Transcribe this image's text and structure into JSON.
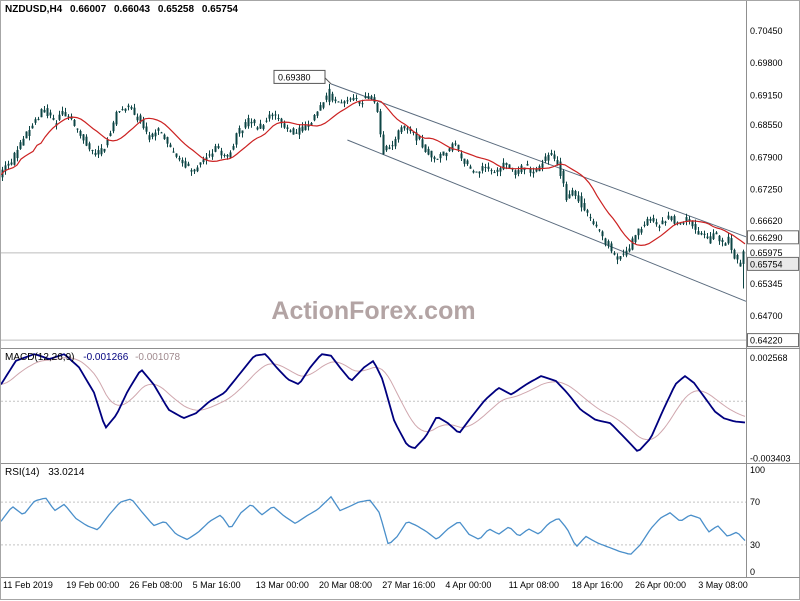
{
  "header": {
    "symbol_period": "NZDUSD,H4",
    "open": "0.66007",
    "high": "0.66043",
    "low": "0.65258",
    "close": "0.65754"
  },
  "watermark": "ActionForex.com",
  "indicators": {
    "macd": {
      "title": "MACD(12,26,9)",
      "value1": "-0.001266",
      "value2": "-0.001078"
    },
    "rsi": {
      "title": "RSI(14)",
      "value": "33.0214"
    }
  },
  "colors": {
    "candle": "#0d4545",
    "ma": "#cc2222",
    "macd_main": "#00007f",
    "macd_signal": "#d0a7ae",
    "rsi": "#4a8fca",
    "trendline": "#5a6b7e",
    "level_line": "#bcbcbc",
    "separator": "#8f8f8f"
  },
  "axis": {
    "main_y_ticks": [
      "0.70450",
      "0.69800",
      "0.69150",
      "0.68550",
      "0.67900",
      "0.67250",
      "0.66620",
      "0.65975",
      "0.65345",
      "0.64700"
    ],
    "boxed_labels": [
      {
        "text": "0.66290",
        "value": 0.6629,
        "current": false
      },
      {
        "text": "0.65754",
        "value": 0.65754,
        "current": true
      },
      {
        "text": "0.64220",
        "value": 0.6422,
        "current": false
      }
    ],
    "macd_y_ticks": [
      {
        "text": "0.002568",
        "value": 0.002568
      },
      {
        "text": "-0.003403",
        "value": -0.003403
      }
    ],
    "rsi_y_ticks": [
      {
        "text": "100",
        "value": 100
      },
      {
        "text": "70",
        "value": 70
      },
      {
        "text": "30",
        "value": 30
      },
      {
        "text": "0",
        "value": 0
      }
    ],
    "x_labels": [
      "11 Feb 2019",
      "19 Feb 00:00",
      "26 Feb 08:00",
      "5 Mar 16:00",
      "13 Mar 00:00",
      "20 Mar 08:00",
      "27 Mar 16:00",
      "4 Apr 00:00",
      "11 Apr 08:00",
      "18 Apr 16:00",
      "26 Apr 00:00",
      "3 May 08:00"
    ]
  },
  "chart_data": [
    {
      "type": "candlestick",
      "symbol": "NZDUSD",
      "timeframe": "H4",
      "title": "NZDUSD,H4",
      "ylim": [
        0.6408,
        0.7105
      ],
      "current": {
        "open": 0.66007,
        "high": 0.66043,
        "low": 0.65258,
        "close": 0.65754
      },
      "price_path": [
        [
          0.0,
          0.6755
        ],
        [
          0.016,
          0.678
        ],
        [
          0.03,
          0.6825
        ],
        [
          0.047,
          0.6862
        ],
        [
          0.06,
          0.6888
        ],
        [
          0.074,
          0.6858
        ],
        [
          0.087,
          0.6882
        ],
        [
          0.105,
          0.6845
        ],
        [
          0.128,
          0.6795
        ],
        [
          0.141,
          0.6808
        ],
        [
          0.158,
          0.688
        ],
        [
          0.172,
          0.6895
        ],
        [
          0.188,
          0.6868
        ],
        [
          0.201,
          0.6828
        ],
        [
          0.215,
          0.6845
        ],
        [
          0.231,
          0.6805
        ],
        [
          0.248,
          0.6775
        ],
        [
          0.262,
          0.6765
        ],
        [
          0.278,
          0.6788
        ],
        [
          0.293,
          0.6812
        ],
        [
          0.306,
          0.6785
        ],
        [
          0.322,
          0.684
        ],
        [
          0.336,
          0.6865
        ],
        [
          0.352,
          0.6848
        ],
        [
          0.365,
          0.6878
        ],
        [
          0.38,
          0.6858
        ],
        [
          0.396,
          0.6838
        ],
        [
          0.412,
          0.6852
        ],
        [
          0.427,
          0.6872
        ],
        [
          0.443,
          0.692
        ],
        [
          0.45,
          0.6902
        ],
        [
          0.463,
          0.6898
        ],
        [
          0.472,
          0.6912
        ],
        [
          0.486,
          0.69
        ],
        [
          0.499,
          0.6915
        ],
        [
          0.51,
          0.6885
        ],
        [
          0.518,
          0.68
        ],
        [
          0.53,
          0.6818
        ],
        [
          0.544,
          0.6852
        ],
        [
          0.557,
          0.684
        ],
        [
          0.573,
          0.681
        ],
        [
          0.587,
          0.6782
        ],
        [
          0.6,
          0.68
        ],
        [
          0.613,
          0.6818
        ],
        [
          0.627,
          0.6782
        ],
        [
          0.64,
          0.6756
        ],
        [
          0.654,
          0.6774
        ],
        [
          0.667,
          0.6762
        ],
        [
          0.681,
          0.6777
        ],
        [
          0.694,
          0.6758
        ],
        [
          0.707,
          0.6771
        ],
        [
          0.721,
          0.6762
        ],
        [
          0.734,
          0.6781
        ],
        [
          0.745,
          0.68
        ],
        [
          0.754,
          0.6776
        ],
        [
          0.765,
          0.6708
        ],
        [
          0.776,
          0.6721
        ],
        [
          0.789,
          0.6684
        ],
        [
          0.803,
          0.6654
        ],
        [
          0.819,
          0.6617
        ],
        [
          0.835,
          0.6586
        ],
        [
          0.848,
          0.6604
        ],
        [
          0.862,
          0.6644
        ],
        [
          0.875,
          0.6666
        ],
        [
          0.889,
          0.6651
        ],
        [
          0.902,
          0.6671
        ],
        [
          0.915,
          0.6657
        ],
        [
          0.929,
          0.6669
        ],
        [
          0.942,
          0.6641
        ],
        [
          0.956,
          0.6621
        ],
        [
          0.965,
          0.6641
        ],
        [
          0.974,
          0.6614
        ],
        [
          0.984,
          0.6627
        ],
        [
          0.992,
          0.6589
        ],
        [
          1.0,
          0.65754
        ]
      ],
      "annotations": {
        "peak": {
          "t": 0.443,
          "price": 0.6938,
          "text": "0.69380"
        },
        "trendlines": [
          [
            0.443,
            0.6938,
            1.0,
            0.663
          ],
          [
            0.465,
            0.6825,
            1.0,
            0.65
          ]
        ],
        "levels": [
          0.65975,
          0.6422
        ]
      }
    },
    {
      "type": "line",
      "name": "MACD(12,26,9)",
      "ylim": [
        -0.0036,
        0.0031
      ],
      "current_main": -0.001266,
      "current_signal": -0.001078,
      "main": [
        [
          0.0,
          0.001
        ],
        [
          0.02,
          0.0024
        ],
        [
          0.045,
          0.0028
        ],
        [
          0.065,
          0.0025
        ],
        [
          0.085,
          0.0028
        ],
        [
          0.105,
          0.002
        ],
        [
          0.125,
          0.0005
        ],
        [
          0.14,
          -0.0016
        ],
        [
          0.155,
          -0.0008
        ],
        [
          0.17,
          0.0006
        ],
        [
          0.188,
          0.0019
        ],
        [
          0.205,
          0.001
        ],
        [
          0.225,
          -0.0005
        ],
        [
          0.245,
          -0.001
        ],
        [
          0.262,
          -0.0007
        ],
        [
          0.28,
          0.0
        ],
        [
          0.3,
          0.0005
        ],
        [
          0.32,
          0.0016
        ],
        [
          0.34,
          0.0027
        ],
        [
          0.355,
          0.0028
        ],
        [
          0.37,
          0.002
        ],
        [
          0.385,
          0.0013
        ],
        [
          0.4,
          0.001
        ],
        [
          0.415,
          0.002
        ],
        [
          0.43,
          0.0028
        ],
        [
          0.443,
          0.0027
        ],
        [
          0.455,
          0.002
        ],
        [
          0.47,
          0.0012
        ],
        [
          0.487,
          0.002
        ],
        [
          0.5,
          0.0024
        ],
        [
          0.512,
          0.0013
        ],
        [
          0.528,
          -0.0012
        ],
        [
          0.545,
          -0.0026
        ],
        [
          0.555,
          -0.0028
        ],
        [
          0.57,
          -0.0021
        ],
        [
          0.585,
          -0.0009
        ],
        [
          0.6,
          -0.0013
        ],
        [
          0.615,
          -0.0019
        ],
        [
          0.632,
          -0.0009
        ],
        [
          0.65,
          0.0001
        ],
        [
          0.668,
          0.0008
        ],
        [
          0.685,
          0.0004
        ],
        [
          0.705,
          0.001
        ],
        [
          0.725,
          0.0015
        ],
        [
          0.745,
          0.0012
        ],
        [
          0.76,
          0.0005
        ],
        [
          0.778,
          -0.0005
        ],
        [
          0.798,
          -0.0011
        ],
        [
          0.818,
          -0.0013
        ],
        [
          0.838,
          -0.0022
        ],
        [
          0.855,
          -0.003
        ],
        [
          0.872,
          -0.0022
        ],
        [
          0.888,
          -0.0006
        ],
        [
          0.905,
          0.001
        ],
        [
          0.918,
          0.0015
        ],
        [
          0.93,
          0.0011
        ],
        [
          0.945,
          0.0002
        ],
        [
          0.958,
          -0.0006
        ],
        [
          0.97,
          -0.001
        ],
        [
          0.985,
          -0.0012
        ],
        [
          1.0,
          -0.001266
        ]
      ]
    },
    {
      "type": "line",
      "name": "RSI(14)",
      "ylim": [
        0,
        100
      ],
      "current": 33.0214,
      "levels": [
        70,
        30
      ],
      "values": [
        [
          0.0,
          52
        ],
        [
          0.015,
          66
        ],
        [
          0.03,
          58
        ],
        [
          0.045,
          71
        ],
        [
          0.06,
          74
        ],
        [
          0.072,
          62
        ],
        [
          0.085,
          68
        ],
        [
          0.1,
          55
        ],
        [
          0.115,
          48
        ],
        [
          0.13,
          44
        ],
        [
          0.145,
          58
        ],
        [
          0.16,
          70
        ],
        [
          0.175,
          73
        ],
        [
          0.19,
          60
        ],
        [
          0.205,
          48
        ],
        [
          0.22,
          52
        ],
        [
          0.235,
          40
        ],
        [
          0.25,
          35
        ],
        [
          0.265,
          42
        ],
        [
          0.28,
          52
        ],
        [
          0.295,
          58
        ],
        [
          0.308,
          45
        ],
        [
          0.322,
          60
        ],
        [
          0.336,
          68
        ],
        [
          0.35,
          58
        ],
        [
          0.365,
          66
        ],
        [
          0.38,
          57
        ],
        [
          0.395,
          50
        ],
        [
          0.41,
          57
        ],
        [
          0.425,
          63
        ],
        [
          0.443,
          75
        ],
        [
          0.455,
          62
        ],
        [
          0.468,
          66
        ],
        [
          0.48,
          70
        ],
        [
          0.495,
          72
        ],
        [
          0.508,
          60
        ],
        [
          0.52,
          30
        ],
        [
          0.532,
          38
        ],
        [
          0.545,
          52
        ],
        [
          0.558,
          48
        ],
        [
          0.572,
          42
        ],
        [
          0.585,
          35
        ],
        [
          0.6,
          45
        ],
        [
          0.615,
          52
        ],
        [
          0.628,
          40
        ],
        [
          0.642,
          35
        ],
        [
          0.655,
          45
        ],
        [
          0.668,
          40
        ],
        [
          0.682,
          47
        ],
        [
          0.695,
          38
        ],
        [
          0.708,
          45
        ],
        [
          0.722,
          40
        ],
        [
          0.735,
          50
        ],
        [
          0.748,
          55
        ],
        [
          0.76,
          45
        ],
        [
          0.772,
          28
        ],
        [
          0.785,
          38
        ],
        [
          0.8,
          32
        ],
        [
          0.815,
          28
        ],
        [
          0.83,
          24
        ],
        [
          0.845,
          21
        ],
        [
          0.858,
          30
        ],
        [
          0.872,
          45
        ],
        [
          0.885,
          55
        ],
        [
          0.898,
          60
        ],
        [
          0.912,
          52
        ],
        [
          0.925,
          58
        ],
        [
          0.938,
          55
        ],
        [
          0.95,
          42
        ],
        [
          0.962,
          48
        ],
        [
          0.975,
          38
        ],
        [
          0.988,
          42
        ],
        [
          1.0,
          33.0
        ]
      ]
    }
  ]
}
